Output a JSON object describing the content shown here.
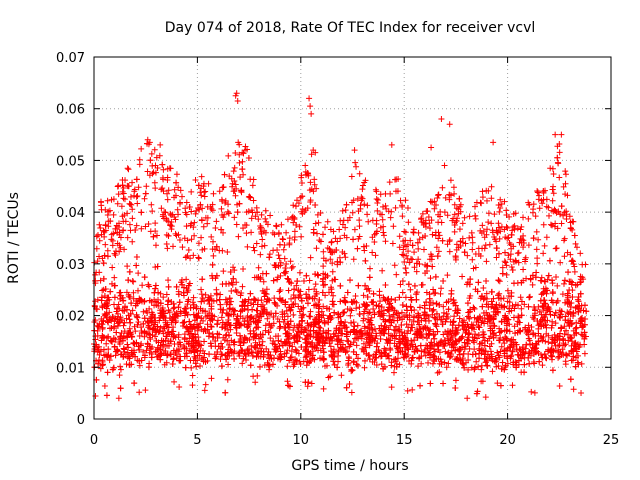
{
  "chart_data": {
    "type": "scatter",
    "title": "Day 074 of 2018, Rate Of TEC Index for receiver vcvl",
    "xlabel": "GPS time / hours",
    "ylabel": "ROTI / TECUs",
    "xlim": [
      0,
      25
    ],
    "ylim": [
      0,
      0.07
    ],
    "xticks": [
      0,
      5,
      10,
      15,
      20,
      25
    ],
    "xtick_labels": [
      "0",
      "5",
      "10",
      "15",
      "20",
      "25"
    ],
    "yticks": [
      0,
      0.01,
      0.02,
      0.03,
      0.04,
      0.05,
      0.06,
      0.07
    ],
    "ytick_labels": [
      "0",
      "0.01",
      "0.02",
      "0.03",
      "0.04",
      "0.05",
      "0.06",
      "0.07"
    ],
    "grid": true,
    "marker": "+",
    "color": "#ff0000",
    "data_x_range": [
      0,
      23.8
    ],
    "envelope": [
      [
        0.0,
        0.004,
        0.033
      ],
      [
        0.5,
        0.004,
        0.047
      ],
      [
        1.0,
        0.004,
        0.044
      ],
      [
        1.5,
        0.004,
        0.048
      ],
      [
        2.0,
        0.005,
        0.05
      ],
      [
        2.5,
        0.005,
        0.054
      ],
      [
        3.0,
        0.005,
        0.052
      ],
      [
        3.5,
        0.005,
        0.049
      ],
      [
        4.0,
        0.005,
        0.048
      ],
      [
        4.5,
        0.005,
        0.043
      ],
      [
        5.0,
        0.004,
        0.047
      ],
      [
        5.5,
        0.005,
        0.047
      ],
      [
        6.0,
        0.005,
        0.043
      ],
      [
        6.5,
        0.005,
        0.052
      ],
      [
        7.0,
        0.005,
        0.054
      ],
      [
        7.5,
        0.005,
        0.052
      ],
      [
        8.0,
        0.005,
        0.041
      ],
      [
        8.5,
        0.005,
        0.04
      ],
      [
        9.0,
        0.005,
        0.038
      ],
      [
        9.5,
        0.005,
        0.039
      ],
      [
        10.0,
        0.005,
        0.048
      ],
      [
        10.5,
        0.005,
        0.052
      ],
      [
        11.0,
        0.005,
        0.04
      ],
      [
        11.5,
        0.005,
        0.038
      ],
      [
        12.0,
        0.005,
        0.04
      ],
      [
        12.5,
        0.004,
        0.051
      ],
      [
        13.0,
        0.005,
        0.047
      ],
      [
        13.5,
        0.005,
        0.046
      ],
      [
        14.0,
        0.005,
        0.044
      ],
      [
        14.5,
        0.004,
        0.049
      ],
      [
        15.0,
        0.004,
        0.043
      ],
      [
        15.5,
        0.005,
        0.04
      ],
      [
        16.0,
        0.005,
        0.04
      ],
      [
        16.5,
        0.004,
        0.045
      ],
      [
        17.0,
        0.004,
        0.05
      ],
      [
        17.5,
        0.004,
        0.044
      ],
      [
        18.0,
        0.004,
        0.04
      ],
      [
        18.5,
        0.004,
        0.042
      ],
      [
        19.0,
        0.004,
        0.046
      ],
      [
        19.5,
        0.004,
        0.045
      ],
      [
        20.0,
        0.004,
        0.041
      ],
      [
        20.5,
        0.004,
        0.04
      ],
      [
        21.0,
        0.004,
        0.042
      ],
      [
        21.5,
        0.005,
        0.045
      ],
      [
        22.0,
        0.005,
        0.05
      ],
      [
        22.5,
        0.005,
        0.054
      ],
      [
        23.0,
        0.005,
        0.044
      ],
      [
        23.5,
        0.005,
        0.036
      ],
      [
        23.8,
        0.005,
        0.032
      ]
    ],
    "outliers": [
      [
        6.85,
        0.0625
      ],
      [
        6.9,
        0.063
      ],
      [
        6.95,
        0.0615
      ],
      [
        10.4,
        0.062
      ],
      [
        10.45,
        0.0605
      ],
      [
        10.5,
        0.059
      ],
      [
        16.8,
        0.058
      ],
      [
        17.2,
        0.057
      ],
      [
        22.3,
        0.055
      ],
      [
        22.6,
        0.055
      ],
      [
        2.6,
        0.054
      ],
      [
        2.7,
        0.0535
      ],
      [
        3.2,
        0.053
      ],
      [
        14.4,
        0.053
      ],
      [
        19.3,
        0.0535
      ],
      [
        7.3,
        0.052
      ],
      [
        10.6,
        0.052
      ],
      [
        10.7,
        0.0515
      ],
      [
        12.6,
        0.052
      ],
      [
        16.3,
        0.0525
      ]
    ]
  }
}
